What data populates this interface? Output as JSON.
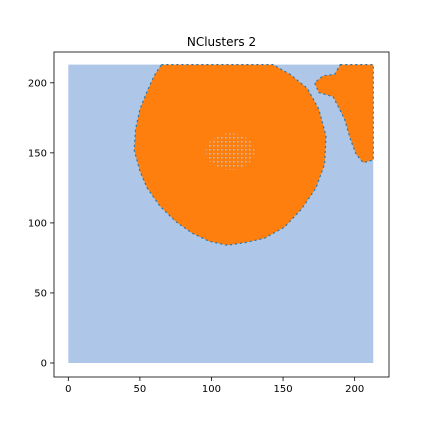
{
  "chart_data": {
    "type": "scatter",
    "title": "NClusters 2",
    "xlabel": "",
    "ylabel": "",
    "xlim": [
      -10,
      224
    ],
    "ylim": [
      -10,
      222
    ],
    "x_ticks": [
      0,
      50,
      100,
      150,
      200
    ],
    "y_ticks": [
      0,
      50,
      100,
      150,
      200
    ],
    "grid": false,
    "colors": {
      "background": "#aec7e8",
      "cluster": "#ff7f0e",
      "edge": "#1f77b4"
    },
    "regions": [
      {
        "name": "background",
        "shape": "rectangle",
        "x_range": [
          0,
          213
        ],
        "y_range": [
          0,
          213
        ]
      },
      {
        "name": "cluster",
        "shape": "polygon",
        "points": [
          [
            65,
            213
          ],
          [
            88,
            213
          ],
          [
            112,
            213
          ],
          [
            135,
            213
          ],
          [
            143,
            213
          ],
          [
            155,
            206
          ],
          [
            167,
            196
          ],
          [
            175,
            181
          ],
          [
            180,
            162
          ],
          [
            179,
            142
          ],
          [
            173,
            125
          ],
          [
            163,
            110
          ],
          [
            151,
            97
          ],
          [
            137,
            89
          ],
          [
            124,
            86
          ],
          [
            111,
            84
          ],
          [
            98,
            87
          ],
          [
            86,
            93
          ],
          [
            75,
            101
          ],
          [
            64,
            112
          ],
          [
            55,
            125
          ],
          [
            50,
            137
          ],
          [
            46,
            152
          ],
          [
            47,
            167
          ],
          [
            50,
            181
          ],
          [
            55,
            194
          ],
          [
            60,
            205
          ]
        ]
      },
      {
        "name": "cluster",
        "shape": "polygon",
        "points": [
          [
            190,
            213
          ],
          [
            213,
            213
          ],
          [
            213,
            145
          ],
          [
            206,
            143
          ],
          [
            201,
            149
          ],
          [
            197,
            160
          ],
          [
            193,
            174
          ],
          [
            185,
            190
          ],
          [
            175,
            193
          ],
          [
            172,
            200
          ],
          [
            178,
            205
          ],
          [
            186,
            206
          ]
        ]
      }
    ],
    "hole": {
      "center": [
        113,
        151
      ],
      "rx": 17,
      "ry": 13
    }
  }
}
